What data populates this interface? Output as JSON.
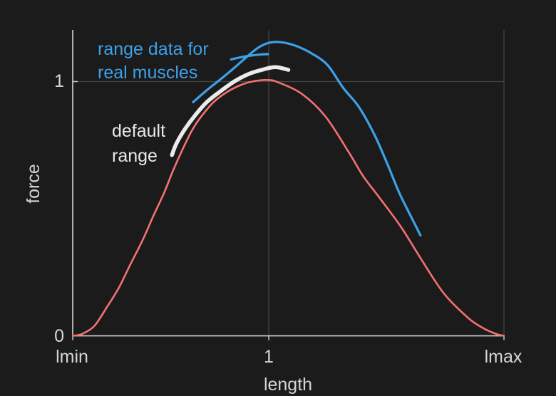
{
  "figure": {
    "background": "#1b1b1b",
    "spine_color": "#c9c9c9",
    "grid_color": "#454545",
    "tick_text_color": "#d6d6d6"
  },
  "chart_data": {
    "type": "line",
    "title": "",
    "xlabel": "length",
    "ylabel": "force",
    "xlim": [
      0.5,
      1.6
    ],
    "ylim": [
      0,
      1.2
    ],
    "grid": "partial (gridlines at length=1, length=lmax, force=1)",
    "legend_position": "none (labels annotated on plot)",
    "x_ticks": [
      {
        "label": "lmin",
        "value": 0.5
      },
      {
        "label": "1",
        "value": 1.0
      },
      {
        "label": "lmax",
        "value": 1.6
      }
    ],
    "y_ticks": [
      {
        "label": "0",
        "value": 0.0
      },
      {
        "label": "1",
        "value": 1.0
      }
    ],
    "x_gridlines": [
      1.0,
      1.6
    ],
    "y_gridlines": [
      1.0
    ],
    "series": [
      {
        "id": "force-length-curve",
        "color": "#f47171",
        "stroke_width": 2.6,
        "points": [
          [
            0.5,
            0.0
          ],
          [
            0.515,
            0.003
          ],
          [
            0.53,
            0.012
          ],
          [
            0.556,
            0.04
          ],
          [
            0.587,
            0.112
          ],
          [
            0.618,
            0.19
          ],
          [
            0.647,
            0.281
          ],
          [
            0.678,
            0.375
          ],
          [
            0.705,
            0.469
          ],
          [
            0.733,
            0.562
          ],
          [
            0.756,
            0.65
          ],
          [
            0.782,
            0.739
          ],
          [
            0.805,
            0.81
          ],
          [
            0.829,
            0.865
          ],
          [
            0.86,
            0.92
          ],
          [
            0.896,
            0.961
          ],
          [
            0.933,
            0.989
          ],
          [
            0.969,
            1.003
          ],
          [
            1.0,
            1.006
          ],
          [
            1.024,
            0.997
          ],
          [
            1.084,
            0.952
          ],
          [
            1.145,
            0.862
          ],
          [
            1.205,
            0.72
          ],
          [
            1.24,
            0.63
          ],
          [
            1.284,
            0.54
          ],
          [
            1.338,
            0.427
          ],
          [
            1.387,
            0.306
          ],
          [
            1.447,
            0.166
          ],
          [
            1.509,
            0.07
          ],
          [
            1.545,
            0.032
          ],
          [
            1.569,
            0.014
          ],
          [
            1.585,
            0.005
          ],
          [
            1.6,
            0.0
          ]
        ]
      },
      {
        "id": "default-range",
        "color": "#ebebeb",
        "stroke_width": 5.5,
        "points": [
          [
            0.753,
            0.711
          ],
          [
            0.765,
            0.758
          ],
          [
            0.787,
            0.815
          ],
          [
            0.811,
            0.865
          ],
          [
            0.842,
            0.919
          ],
          [
            0.878,
            0.963
          ],
          [
            0.915,
            1.003
          ],
          [
            0.951,
            1.031
          ],
          [
            0.987,
            1.048
          ],
          [
            1.018,
            1.057
          ],
          [
            1.05,
            1.046
          ]
        ]
      },
      {
        "id": "real-muscle-range-long",
        "color": "#3da0e8",
        "stroke_width": 3.2,
        "points": [
          [
            0.807,
            0.919
          ],
          [
            0.842,
            0.966
          ],
          [
            0.878,
            1.01
          ],
          [
            0.915,
            1.058
          ],
          [
            0.95,
            1.105
          ],
          [
            0.975,
            1.135
          ],
          [
            1.0,
            1.152
          ],
          [
            1.03,
            1.155
          ],
          [
            1.07,
            1.14
          ],
          [
            1.11,
            1.11
          ],
          [
            1.15,
            1.065
          ],
          [
            1.19,
            0.975
          ],
          [
            1.23,
            0.9
          ],
          [
            1.27,
            0.79
          ],
          [
            1.303,
            0.674
          ],
          [
            1.333,
            0.562
          ],
          [
            1.36,
            0.478
          ],
          [
            1.387,
            0.395
          ]
        ]
      },
      {
        "id": "real-muscle-range-short",
        "color": "#3da0e8",
        "stroke_width": 3.2,
        "points": [
          [
            0.904,
            1.087
          ],
          [
            0.93,
            1.096
          ],
          [
            0.951,
            1.101
          ],
          [
            0.975,
            1.106
          ],
          [
            0.998,
            1.108
          ]
        ]
      }
    ]
  },
  "annotations": [
    {
      "id": "real-muscle-range-label",
      "color": "#3da0e8",
      "lines": [
        "range data for",
        "real muscles"
      ]
    },
    {
      "id": "default-range-label",
      "color": "#ebe9e6",
      "lines": [
        "default",
        "range"
      ]
    }
  ]
}
